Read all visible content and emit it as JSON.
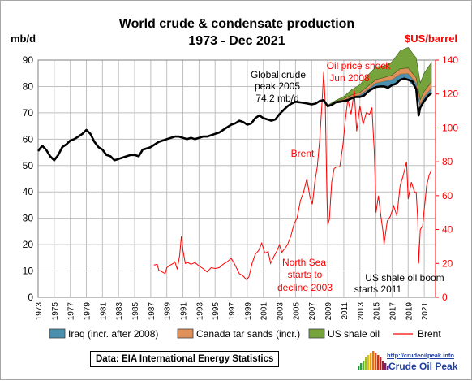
{
  "chart_data": {
    "type": "area",
    "title": "World crude & condensate production",
    "subtitle": "1973 - Dec 2021",
    "y_left_label": "mb/d",
    "y_right_label": "$US/barrel",
    "ylim_left": [
      0,
      90
    ],
    "ylim_right": [
      0,
      140
    ],
    "yticks_left": [
      "0",
      "10",
      "20",
      "30",
      "40",
      "50",
      "60",
      "70",
      "80",
      "90"
    ],
    "yticks_right": [
      "0",
      "20",
      "40",
      "60",
      "80",
      "100",
      "120",
      "140"
    ],
    "xlim": [
      1973,
      2022.4
    ],
    "xticks": [
      "1973",
      "1975",
      "1977",
      "1979",
      "1981",
      "1983",
      "1985",
      "1987",
      "1989",
      "1991",
      "1993",
      "1995",
      "1997",
      "1999",
      "2001",
      "2003",
      "2005",
      "2007",
      "2009",
      "2011",
      "2013",
      "2015",
      "2017",
      "2019",
      "2021"
    ],
    "grid": true,
    "legend_position": "bottom",
    "legend": [
      "Iraq (incr. after 2008)",
      "Canada tar sands (incr.)",
      "US shale oil",
      "Brent"
    ],
    "colors": {
      "production": "#000000",
      "iraq": "#4a8fae",
      "canada": "#e0915a",
      "shale": "#77a33c",
      "brent": "#ff0000",
      "grid": "#bfbfbf",
      "right_axis": "#ff0000"
    },
    "series": [
      {
        "name": "World crude & condensate production",
        "axis": "left",
        "x": [
          1973.0,
          1973.5,
          1974.0,
          1974.5,
          1975.0,
          1975.5,
          1976.0,
          1976.5,
          1977.0,
          1977.5,
          1978.0,
          1978.5,
          1979.0,
          1979.5,
          1980.0,
          1980.5,
          1981.0,
          1981.5,
          1982.0,
          1982.5,
          1983.0,
          1983.5,
          1984.0,
          1984.5,
          1985.0,
          1985.5,
          1986.0,
          1986.5,
          1987.0,
          1987.5,
          1988.0,
          1988.5,
          1989.0,
          1989.5,
          1990.0,
          1990.5,
          1991.0,
          1991.5,
          1992.0,
          1992.5,
          1993.0,
          1993.5,
          1994.0,
          1994.5,
          1995.0,
          1995.5,
          1996.0,
          1996.5,
          1997.0,
          1997.5,
          1998.0,
          1998.5,
          1999.0,
          1999.5,
          2000.0,
          2000.5,
          2001.0,
          2001.5,
          2002.0,
          2002.5,
          2003.0,
          2003.5,
          2004.0,
          2004.5,
          2005.0,
          2005.5,
          2006.0,
          2006.5,
          2007.0,
          2007.5,
          2008.0,
          2008.5,
          2009.0,
          2009.5,
          2010.0,
          2010.5,
          2011.0,
          2011.5,
          2012.0,
          2012.5,
          2013.0,
          2013.5,
          2014.0,
          2014.5,
          2015.0,
          2015.5,
          2016.0,
          2016.5,
          2017.0,
          2017.5,
          2018.0,
          2018.5,
          2019.0,
          2019.5,
          2020.0,
          2020.3,
          2020.5,
          2021.0,
          2021.5,
          2021.9
        ],
        "y": [
          55.5,
          57.5,
          56.0,
          53.5,
          52.0,
          54.0,
          57.0,
          58.0,
          59.5,
          60.0,
          61.0,
          62.0,
          63.5,
          62.0,
          59.0,
          57.0,
          56.0,
          54.0,
          53.5,
          52.0,
          52.5,
          53.0,
          53.5,
          54.0,
          54.0,
          53.5,
          56.0,
          56.5,
          57.0,
          58.0,
          59.0,
          59.5,
          60.0,
          60.5,
          61.0,
          61.0,
          60.5,
          60.0,
          60.5,
          60.0,
          60.5,
          61.0,
          61.0,
          61.5,
          62.0,
          62.5,
          63.5,
          64.5,
          65.5,
          66.0,
          67.0,
          66.5,
          65.5,
          66.0,
          68.0,
          69.0,
          68.0,
          67.5,
          67.0,
          67.5,
          69.5,
          71.0,
          72.5,
          73.5,
          74.2,
          74.0,
          73.8,
          73.5,
          73.2,
          73.5,
          74.5,
          74.8,
          72.5,
          73.0,
          74.0,
          74.2,
          74.5,
          74.8,
          75.5,
          76.0,
          76.0,
          76.5,
          78.0,
          79.0,
          79.8,
          80.0,
          80.0,
          79.5,
          80.5,
          81.0,
          82.5,
          83.0,
          82.5,
          82.0,
          79.0,
          69.0,
          72.0,
          74.5,
          76.5,
          77.5
        ]
      },
      {
        "name": "Iraq (incr. after 2008)",
        "axis": "left",
        "x": [
          2009.0,
          2010.0,
          2011.0,
          2012.0,
          2013.0,
          2014.0,
          2015.0,
          2016.0,
          2017.0,
          2018.0,
          2019.0,
          2020.0,
          2020.5,
          2021.0,
          2021.9
        ],
        "y": [
          0.0,
          0.0,
          0.3,
          0.6,
          0.8,
          1.0,
          1.5,
          2.0,
          2.1,
          2.2,
          2.4,
          2.3,
          1.3,
          1.6,
          1.9
        ]
      },
      {
        "name": "Canada tar sands (incr.)",
        "axis": "left",
        "x": [
          2009.0,
          2010.0,
          2011.0,
          2012.0,
          2013.0,
          2014.0,
          2015.0,
          2016.0,
          2017.0,
          2018.0,
          2019.0,
          2020.0,
          2020.5,
          2021.0,
          2021.9
        ],
        "y": [
          0.2,
          0.3,
          0.5,
          0.7,
          0.9,
          1.1,
          1.3,
          1.4,
          1.7,
          2.0,
          2.1,
          2.0,
          1.7,
          2.1,
          2.3
        ]
      },
      {
        "name": "US shale oil",
        "axis": "left",
        "x": [
          2009.0,
          2010.0,
          2011.0,
          2012.0,
          2013.0,
          2014.0,
          2015.0,
          2016.0,
          2017.0,
          2018.0,
          2019.0,
          2020.0,
          2020.5,
          2021.0,
          2021.9
        ],
        "y": [
          0.2,
          0.4,
          0.9,
          2.0,
          3.0,
          4.2,
          4.8,
          4.4,
          5.0,
          6.8,
          7.8,
          7.5,
          6.4,
          6.9,
          7.4
        ]
      },
      {
        "name": "Brent",
        "axis": "right",
        "x": [
          1987.4,
          1987.8,
          1988.0,
          1988.4,
          1988.8,
          1989.0,
          1989.4,
          1989.8,
          1990.0,
          1990.3,
          1990.6,
          1990.8,
          1991.0,
          1991.3,
          1991.6,
          1992.0,
          1992.5,
          1993.0,
          1993.5,
          1994.0,
          1994.5,
          1995.0,
          1995.5,
          1996.0,
          1996.5,
          1997.0,
          1997.5,
          1998.0,
          1998.5,
          1998.9,
          1999.2,
          1999.6,
          2000.0,
          2000.4,
          2000.8,
          2001.2,
          2001.6,
          2001.9,
          2002.3,
          2002.7,
          2003.0,
          2003.3,
          2003.7,
          2004.0,
          2004.4,
          2004.8,
          2005.2,
          2005.6,
          2006.0,
          2006.4,
          2006.8,
          2007.1,
          2007.4,
          2007.7,
          2008.0,
          2008.3,
          2008.5,
          2008.7,
          2008.9,
          2009.0,
          2009.2,
          2009.5,
          2009.8,
          2010.1,
          2010.5,
          2010.9,
          2011.2,
          2011.5,
          2011.9,
          2012.3,
          2012.6,
          2013.0,
          2013.4,
          2013.8,
          2014.2,
          2014.5,
          2014.8,
          2015.0,
          2015.3,
          2015.6,
          2015.9,
          2016.0,
          2016.4,
          2016.8,
          2017.2,
          2017.6,
          2018.0,
          2018.4,
          2018.8,
          2019.0,
          2019.4,
          2019.8,
          2020.0,
          2020.2,
          2020.3,
          2020.5,
          2020.8,
          2021.0,
          2021.3,
          2021.6,
          2021.9
        ],
        "y": [
          19.0,
          19.5,
          16.0,
          15.0,
          14.0,
          17.5,
          19.0,
          20.0,
          21.0,
          16.5,
          25.0,
          36.0,
          28.0,
          20.0,
          20.5,
          19.5,
          20.5,
          18.5,
          17.0,
          15.0,
          17.5,
          17.0,
          17.5,
          19.5,
          21.0,
          23.0,
          19.0,
          14.0,
          12.5,
          10.5,
          12.0,
          20.0,
          25.5,
          27.5,
          32.0,
          26.0,
          27.0,
          20.0,
          24.0,
          27.5,
          31.0,
          26.5,
          29.0,
          31.0,
          36.0,
          43.0,
          47.0,
          57.0,
          62.0,
          70.0,
          59.0,
          55.0,
          68.0,
          77.0,
          93.0,
          115.0,
          133.0,
          114.0,
          60.0,
          43.0,
          46.0,
          68.0,
          76.0,
          77.0,
          77.0,
          90.0,
          105.0,
          117.0,
          108.0,
          122.0,
          98.0,
          113.0,
          102.0,
          109.0,
          108.0,
          112.0,
          85.0,
          50.0,
          60.0,
          48.0,
          38.0,
          31.0,
          45.0,
          48.0,
          54.0,
          48.0,
          66.0,
          72.0,
          80.0,
          58.0,
          68.0,
          62.0,
          62.0,
          45.0,
          20.0,
          40.0,
          42.0,
          52.0,
          66.0,
          72.0,
          75.0
        ]
      }
    ],
    "annotations": [
      {
        "text": "Global crude",
        "color": "#000000"
      },
      {
        "text": "peak 2005",
        "color": "#000000"
      },
      {
        "text": "74.2 mb/d",
        "color": "#000000"
      },
      {
        "text": "Oil price shock",
        "color": "#ff0000"
      },
      {
        "text": "Jun 2008",
        "color": "#ff0000"
      },
      {
        "text": "Brent",
        "color": "#ff0000"
      },
      {
        "text": "North Sea",
        "color": "#ff0000"
      },
      {
        "text": "starts to",
        "color": "#ff0000"
      },
      {
        "text": "decline 2003",
        "color": "#ff0000"
      },
      {
        "text": "US shale oil boom",
        "color": "#000000"
      },
      {
        "text": "starts 2011",
        "color": "#000000"
      }
    ]
  },
  "source_label": "Data: EIA International Energy Statistics",
  "logo": {
    "url": "http://crudeoilpeak.info",
    "name": "Crude Oil Peak"
  }
}
